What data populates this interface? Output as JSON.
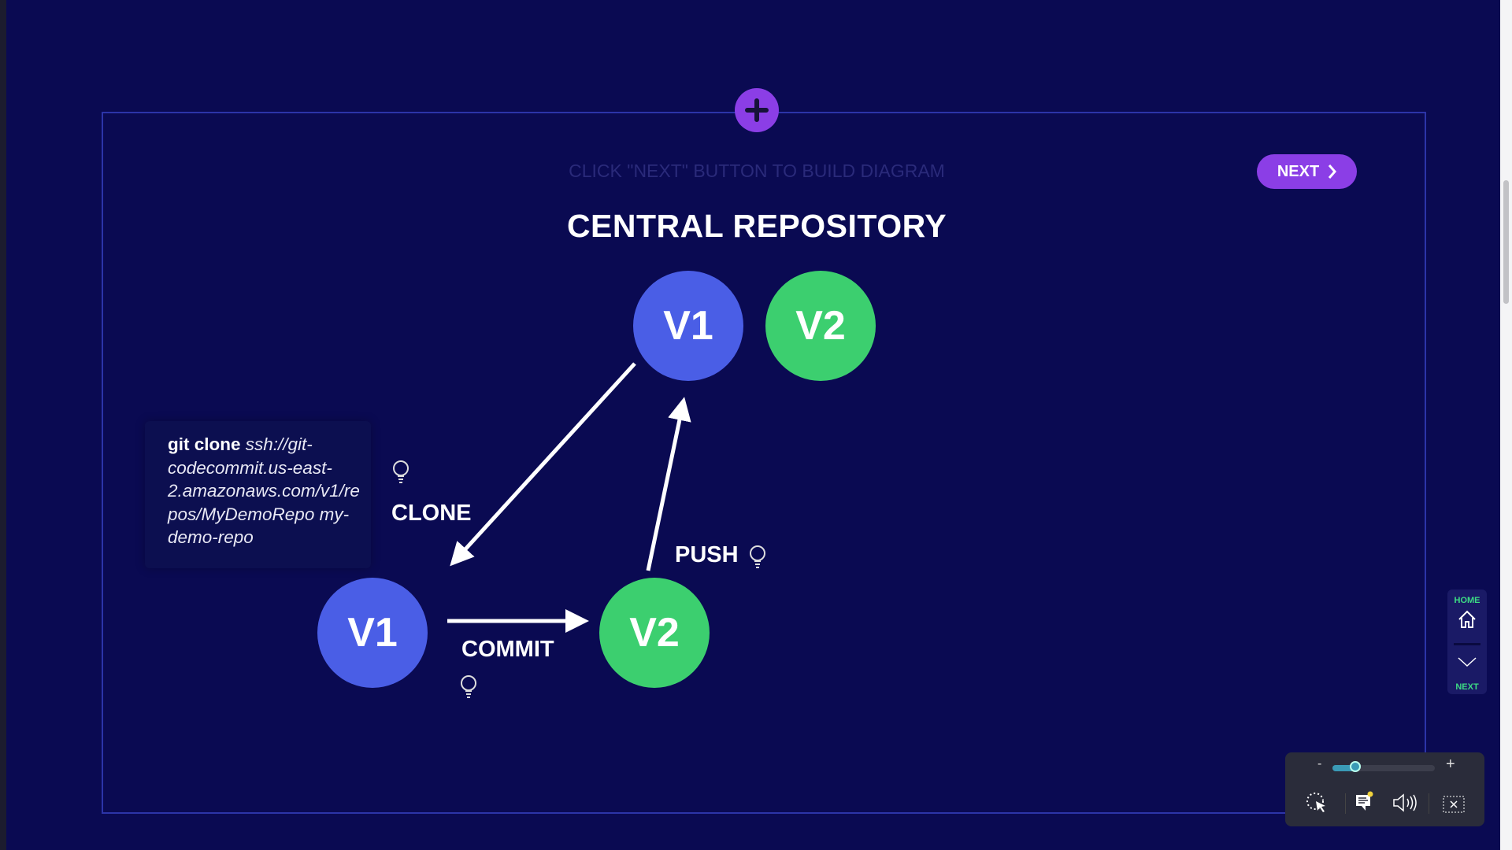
{
  "colors": {
    "background": "#0a0a52",
    "accent": "#8b3ee6",
    "node_blue": "#4a5ee6",
    "node_green": "#3ccf6f",
    "nav_green": "#3ddc84"
  },
  "header": {
    "add_icon": "plus-icon",
    "instruction": "CLICK \"NEXT\" BUTTON TO BUILD DIAGRAM",
    "next_label": "NEXT",
    "next_icon": "chevron-right-icon"
  },
  "diagram": {
    "title": "CENTRAL REPOSITORY",
    "central_nodes": [
      {
        "label": "V1"
      },
      {
        "label": "V2"
      }
    ],
    "local_nodes": [
      {
        "label": "V1"
      },
      {
        "label": "V2"
      }
    ],
    "labels": {
      "clone": "CLONE",
      "commit": "COMMIT",
      "push": "PUSH"
    },
    "hint_icon": "lightbulb-icon",
    "tooltip": {
      "command": "git clone",
      "argument": "ssh://git-codecommit.us-east-2.amazonaws.com/v1/repos/MyDemoRepo my-demo-repo"
    }
  },
  "side_nav": {
    "home_label": "HOME",
    "next_label": "NEXT"
  },
  "player": {
    "zoom_minus": "-",
    "zoom_plus": "+",
    "zoom_level": 0.22
  }
}
